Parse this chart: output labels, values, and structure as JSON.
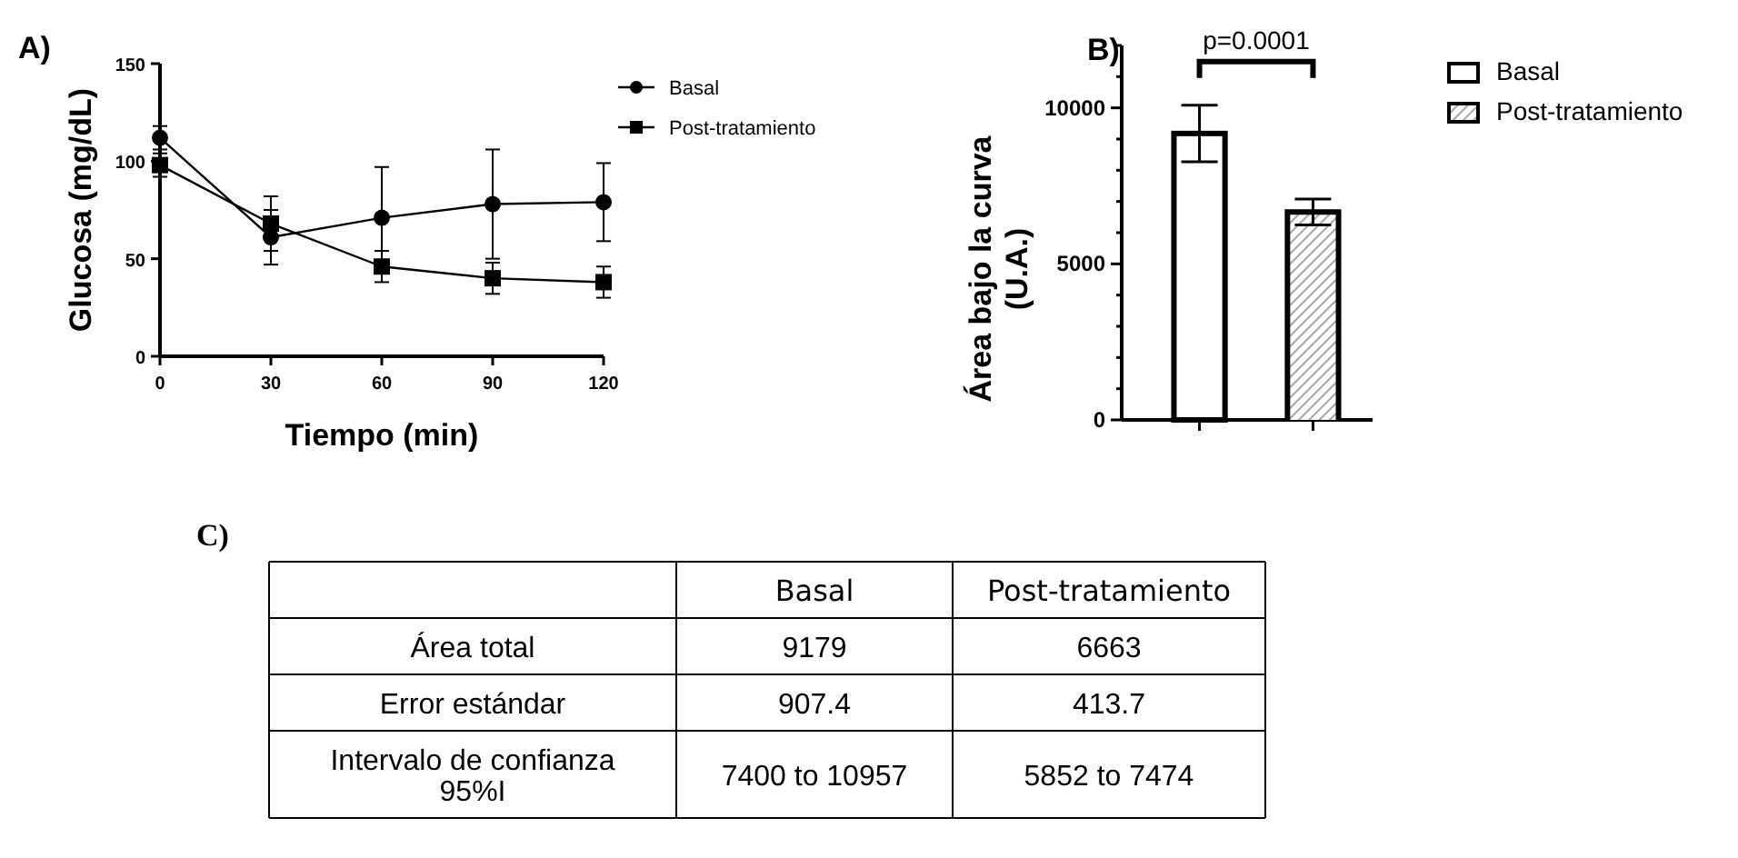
{
  "chart_data": [
    {
      "type": "line",
      "title": "A)",
      "xlabel": "Tiempo (min)",
      "ylabel": "Glucosa (mg/dL)",
      "x": [
        0,
        30,
        60,
        90,
        120
      ],
      "xlim": [
        0,
        120
      ],
      "xticks": [
        0,
        30,
        60,
        90,
        120
      ],
      "ylim": [
        0,
        150
      ],
      "yticks": [
        0,
        50,
        100,
        150
      ],
      "legend": "top right",
      "grid": false,
      "series": [
        {
          "name": "Basal",
          "color": "#000000",
          "marker": "circle",
          "values": [
            112,
            61,
            71,
            78,
            79
          ],
          "errors": [
            6,
            14,
            26,
            28,
            20
          ]
        },
        {
          "name": "Post-tratamiento",
          "color": "#000000",
          "marker": "square",
          "values": [
            98,
            68,
            46,
            40,
            38
          ],
          "errors": [
            6,
            14,
            8,
            8,
            8
          ]
        }
      ]
    },
    {
      "type": "bar",
      "title": "B)",
      "ylabel": "Área bajo la curva (U.A.)",
      "categories": [
        null,
        null
      ],
      "ylim": [
        0,
        12000
      ],
      "yticks": [
        0,
        {
          "value": 1000,
          "label": null
        },
        {
          "value": 2000,
          "label": null
        },
        {
          "value": 3000,
          "label": null
        },
        {
          "value": 4000,
          "label": null
        },
        5000,
        {
          "value": 6000,
          "label": null
        },
        {
          "value": 7000,
          "label": null
        },
        {
          "value": 8000,
          "label": null
        },
        {
          "value": 9000,
          "label": null
        },
        10000,
        {
          "value": 11000,
          "label": null
        },
        {
          "value": 12000,
          "label": null
        }
      ],
      "legend": "top right",
      "annotations": [
        "p=0.0001"
      ],
      "series": [
        {
          "name": "Basal",
          "color": "#ffffff",
          "values": [
            9179,
            null
          ],
          "errors": [
            907.4,
            null
          ]
        },
        {
          "name": "Post-tratamiento",
          "color": "#a6a6a6",
          "values": [
            null,
            6663
          ],
          "errors": [
            null,
            413.7
          ]
        }
      ]
    },
    {
      "type": "other",
      "title": "C)",
      "categories": [
        "Basal",
        "Post-tratamiento"
      ],
      "y_categories": [
        "Área total",
        "Error estándar",
        "Intervalo de confianza 95%I"
      ],
      "cell_labels": [
        [
          "9179",
          "6663"
        ],
        [
          "907.4",
          "413.7"
        ],
        [
          "7400 to 10957",
          "5852 to 7474"
        ]
      ]
    }
  ]
}
